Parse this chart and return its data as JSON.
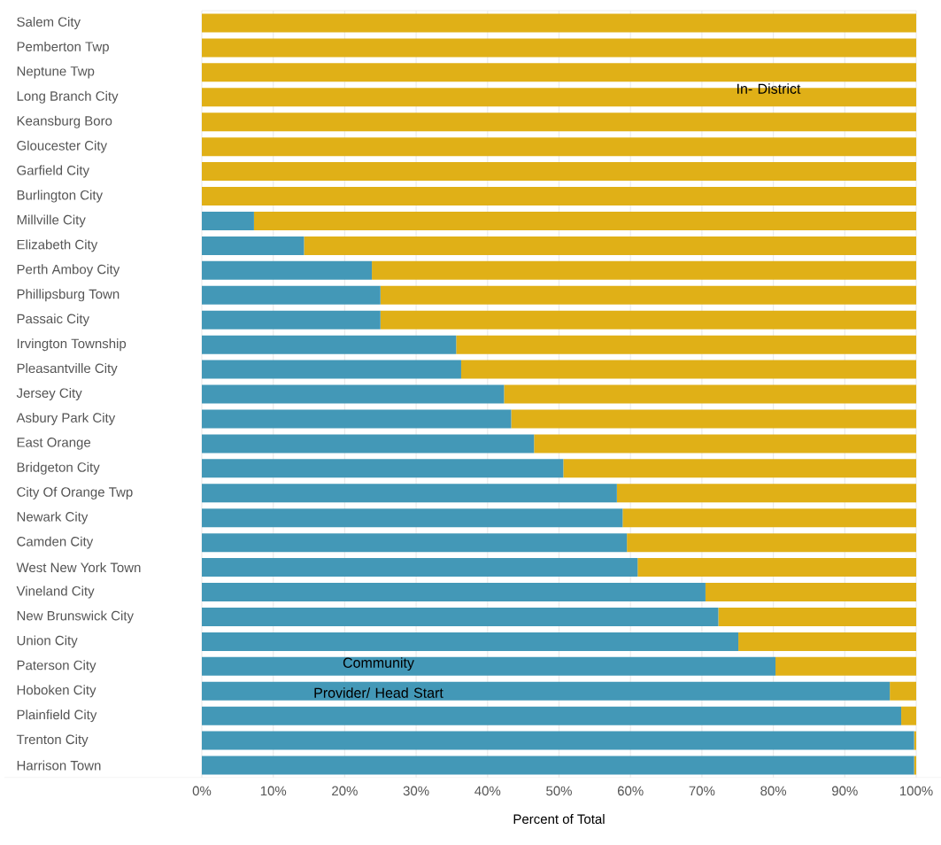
{
  "chart_data": {
    "type": "bar",
    "orientation": "horizontal",
    "stacked": true,
    "xlabel": "Percent of Total",
    "categories": [
      "Salem City",
      "Pemberton Twp",
      "Neptune Twp",
      "Long Branch City",
      "Keansburg Boro",
      "Gloucester City",
      "Garfield City",
      "Burlington City",
      "Millville City",
      "Elizabeth City",
      "Perth Amboy City",
      "Phillipsburg Town",
      "Passaic City",
      "Irvington Township",
      "Pleasantville City",
      "Jersey City",
      "Asbury Park City",
      "East Orange",
      "Bridgeton City",
      "City Of Orange Twp",
      "Newark City",
      "Camden City",
      "West New York Town",
      "Vineland City",
      "New Brunswick City",
      "Union City",
      "Paterson City",
      "Hoboken City",
      "Plainfield City",
      "Trenton City",
      "Harrison Town"
    ],
    "series": [
      {
        "name": "Community Provider/ Head Start",
        "color": "#4398b7",
        "values": [
          0,
          0,
          0,
          0,
          0,
          0,
          0,
          0,
          7.3,
          14.3,
          23.8,
          25.0,
          25.0,
          35.6,
          36.3,
          42.3,
          43.3,
          46.5,
          50.6,
          58.1,
          58.9,
          59.5,
          61.0,
          70.5,
          72.3,
          75.1,
          80.3,
          96.3,
          97.9,
          99.7,
          99.7
        ]
      },
      {
        "name": "In- District",
        "color": "#e0b017",
        "values": [
          100,
          100,
          100,
          100,
          100,
          100,
          100,
          100,
          92.7,
          85.7,
          76.2,
          75.0,
          75.0,
          64.4,
          63.7,
          57.7,
          56.7,
          53.5,
          49.4,
          41.9,
          41.1,
          40.5,
          39.0,
          29.5,
          27.7,
          24.9,
          19.7,
          3.7,
          2.1,
          0.3,
          0.3
        ]
      }
    ],
    "xlim": [
      0,
      100
    ],
    "xticks": [
      {
        "value": 0,
        "label": "0%"
      },
      {
        "value": 10,
        "label": "10%"
      },
      {
        "value": 20,
        "label": "20%"
      },
      {
        "value": 30,
        "label": "30%"
      },
      {
        "value": 40,
        "label": "40%"
      },
      {
        "value": 50,
        "label": "50%"
      },
      {
        "value": 60,
        "label": "60%"
      },
      {
        "value": 70,
        "label": "70%"
      },
      {
        "value": 80,
        "label": "80%"
      },
      {
        "value": 90,
        "label": "90%"
      },
      {
        "value": 100,
        "label": "100%"
      }
    ],
    "grid": "x"
  }
}
